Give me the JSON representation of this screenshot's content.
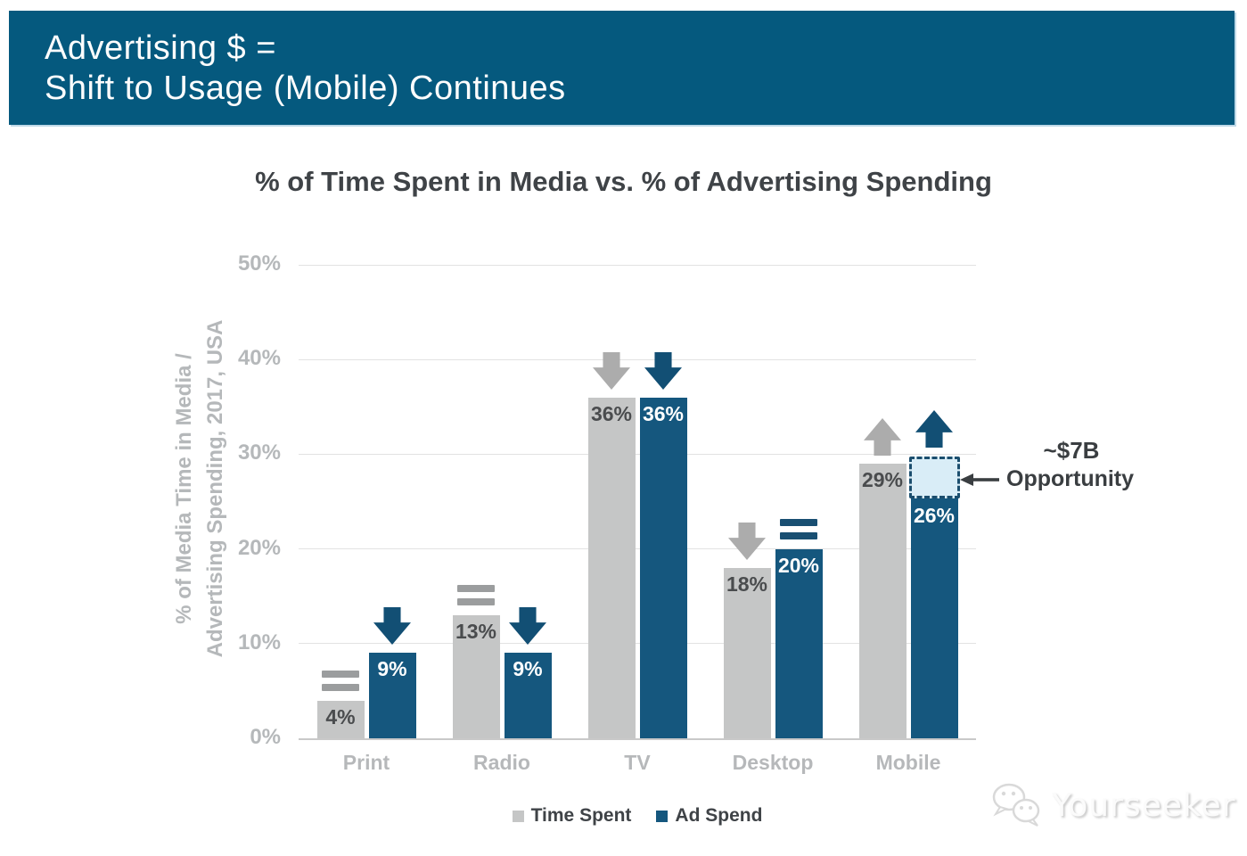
{
  "slide": {
    "banner": {
      "line1": "Advertising $ =",
      "line2": "Shift to Usage (Mobile) Continues",
      "bg_color": "#05597E",
      "text_color": "#FDFDFD"
    },
    "watermark": {
      "text": "Yourseeker",
      "icon": "wechat-icon"
    }
  },
  "chart_data": {
    "type": "bar",
    "title": "% of Time Spent in Media vs. % of Advertising Spending",
    "categories": [
      "Print",
      "Radio",
      "TV",
      "Desktop",
      "Mobile"
    ],
    "series": [
      {
        "name": "Time Spent",
        "color": "#C5C6C6",
        "label_color": "#4A4C4E",
        "values": [
          4,
          13,
          36,
          18,
          29
        ],
        "value_labels": [
          "4%",
          "13%",
          "36%",
          "18%",
          "29%"
        ],
        "trends": [
          "flat",
          "flat",
          "down",
          "down",
          "up"
        ],
        "trend_color": {
          "arrow": "#ACACAC",
          "equals": "#9B9D9E"
        }
      },
      {
        "name": "Ad Spend",
        "color": "#15577E",
        "label_color": "#FFFFFF",
        "values": [
          9,
          9,
          36,
          20,
          26
        ],
        "value_labels": [
          "9%",
          "9%",
          "36%",
          "20%",
          "26%"
        ],
        "trends": [
          "down",
          "down",
          "down",
          "flat",
          "up"
        ],
        "trend_color": {
          "arrow": "#124F74",
          "equals": "#194F72"
        }
      }
    ],
    "ylabel_line1": "% of Media Time in Media /",
    "ylabel_line2": "Advertising Spending, 2017, USA",
    "yticks": [
      "50%",
      "40%",
      "30%",
      "20%",
      "10%",
      "0%"
    ],
    "ylim": [
      0,
      50
    ],
    "grid": true,
    "legend_position": "bottom",
    "annotation": {
      "line1": "~$7B",
      "line2": "Opportunity",
      "category": "Mobile",
      "series": "Ad Spend",
      "box_from_pct": 26,
      "box_to_pct": 29.8,
      "box_fill": "#D9EDF7",
      "box_border": "#1B4E6E",
      "text_color": "#3A3E41"
    }
  }
}
